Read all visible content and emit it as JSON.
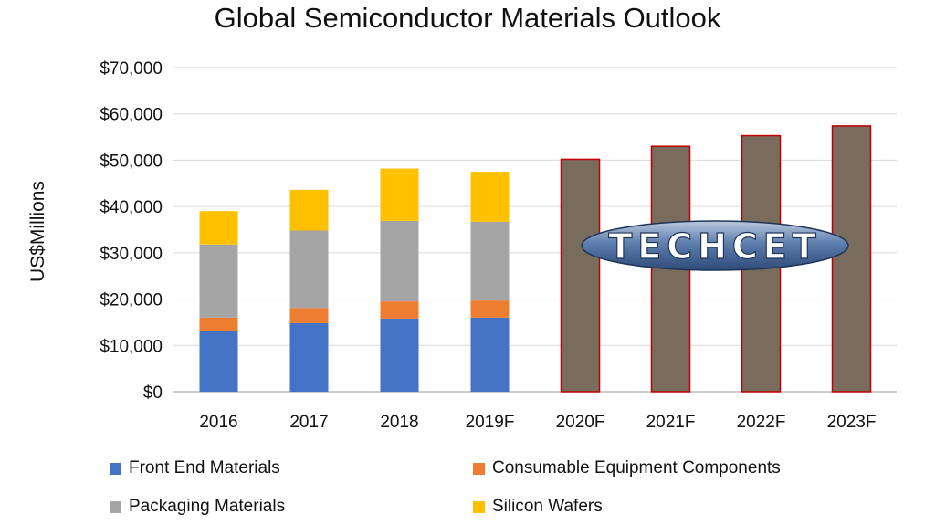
{
  "chart_data": {
    "type": "bar",
    "stacked": true,
    "title": "Global Semiconductor Materials Outlook",
    "ylabel": "US$Millions",
    "xlabel": "",
    "ylim": [
      0,
      70000
    ],
    "yticks": [
      0,
      10000,
      20000,
      30000,
      40000,
      50000,
      60000,
      70000
    ],
    "ytick_labels": [
      "$0",
      "$10,000",
      "$20,000",
      "$30,000",
      "$40,000",
      "$50,000",
      "$60,000",
      "$70,000"
    ],
    "categories": [
      "2016",
      "2017",
      "2018",
      "2019F",
      "2020F",
      "2021F",
      "2022F",
      "2023F"
    ],
    "grid": true,
    "legend_position": "bottom",
    "series": [
      {
        "name": "Front End Materials",
        "color": "#4472C4",
        "values": [
          13200,
          14800,
          15800,
          16000,
          null,
          null,
          null,
          null
        ]
      },
      {
        "name": "Consumable Equipment Components",
        "color": "#ED7D31",
        "values": [
          2800,
          3300,
          3700,
          3700,
          null,
          null,
          null,
          null
        ]
      },
      {
        "name": "Packaging Materials",
        "color": "#A5A5A5",
        "values": [
          15800,
          16700,
          17400,
          17000,
          null,
          null,
          null,
          null
        ]
      },
      {
        "name": "Silicon Wafers",
        "color": "#FFC000",
        "values": [
          7200,
          8800,
          11300,
          10800,
          null,
          null,
          null,
          null
        ]
      }
    ],
    "forecast_totals": {
      "color": "#7A6C5D",
      "border_color": "#C00000",
      "values": [
        null,
        null,
        null,
        null,
        50200,
        53000,
        55300,
        57400
      ]
    },
    "watermark": "TECHCET"
  }
}
